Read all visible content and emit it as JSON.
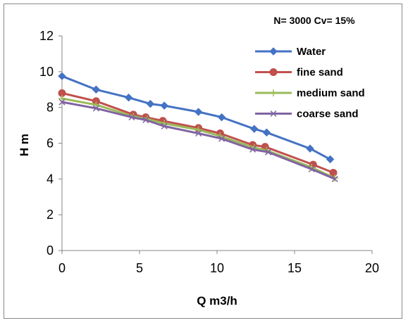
{
  "chart_data": {
    "type": "line",
    "title": "N= 3000 Cv= 15%",
    "xlabel": "Q m3/h",
    "ylabel": "H m",
    "xlim": [
      0,
      20
    ],
    "ylim": [
      0,
      12
    ],
    "xticks": [
      0,
      5,
      10,
      15,
      20
    ],
    "yticks": [
      0,
      2,
      4,
      6,
      8,
      10,
      12
    ],
    "grid": false,
    "legend_position": "right-top",
    "series": [
      {
        "name": "Water",
        "color": "#4472c4",
        "marker": "diamond",
        "x": [
          0,
          2.2,
          4.3,
          5.7,
          6.6,
          8.8,
          10.3,
          12.4,
          13.2,
          16.0,
          17.3
        ],
        "y": [
          9.75,
          9.0,
          8.55,
          8.2,
          8.1,
          7.75,
          7.45,
          6.8,
          6.6,
          5.7,
          5.1
        ]
      },
      {
        "name": "fine sand",
        "color": "#c0504d",
        "marker": "circle",
        "x": [
          0,
          2.2,
          4.6,
          5.4,
          6.5,
          8.8,
          10.2,
          12.3,
          13.1,
          16.2,
          17.5
        ],
        "y": [
          8.8,
          8.35,
          7.6,
          7.45,
          7.25,
          6.85,
          6.55,
          5.9,
          5.8,
          4.8,
          4.35
        ]
      },
      {
        "name": "medium sand",
        "color": "#9bbb59",
        "marker": "plus",
        "x": [
          0,
          2.2,
          4.6,
          5.5,
          6.6,
          8.8,
          10.2,
          12.4,
          13.2,
          16.1,
          17.6
        ],
        "y": [
          8.5,
          8.15,
          7.5,
          7.35,
          7.1,
          6.75,
          6.4,
          5.75,
          5.6,
          4.65,
          4.05
        ]
      },
      {
        "name": "coarse sand",
        "color": "#8064a2",
        "marker": "x",
        "x": [
          0,
          2.2,
          4.5,
          5.4,
          6.6,
          8.8,
          10.3,
          12.3,
          13.3,
          16.1,
          17.6
        ],
        "y": [
          8.3,
          7.95,
          7.45,
          7.3,
          6.95,
          6.55,
          6.25,
          5.65,
          5.5,
          4.55,
          4.0
        ]
      }
    ]
  }
}
